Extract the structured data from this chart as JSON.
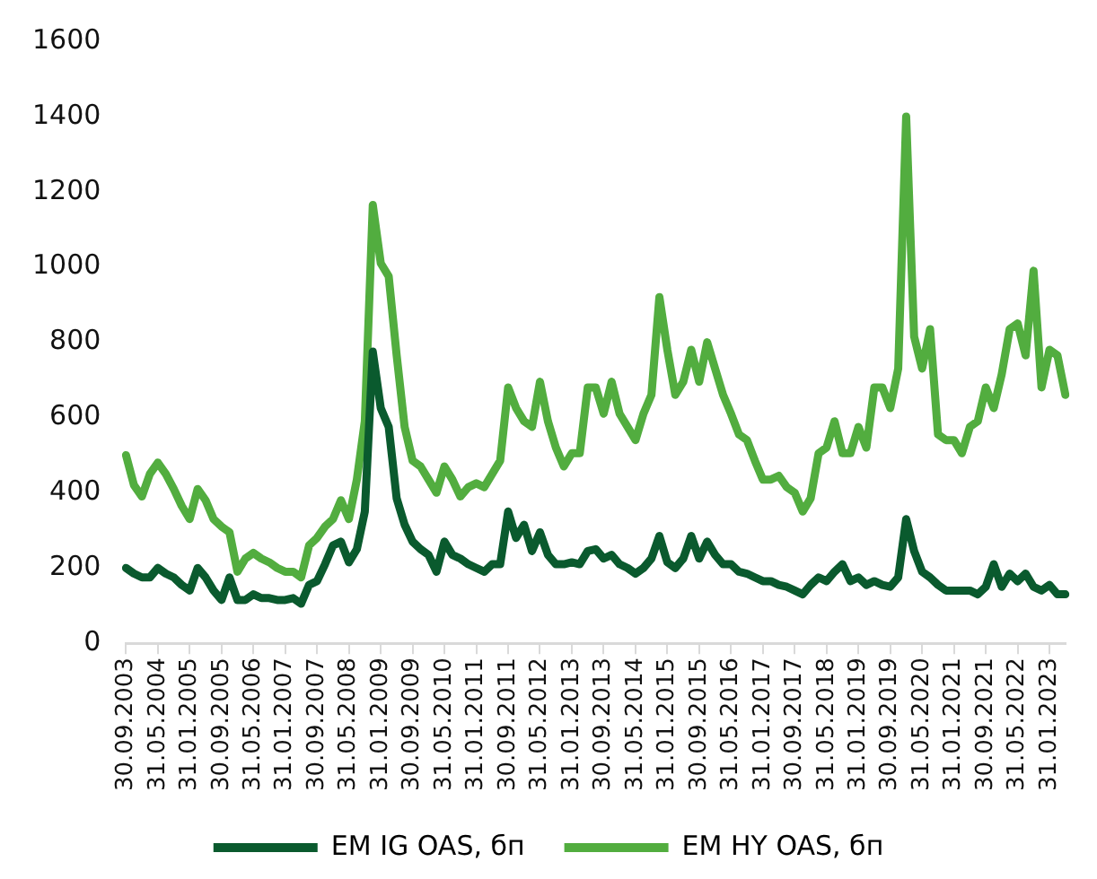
{
  "chart_data": {
    "type": "line",
    "categories": [
      "30.09.2003",
      null,
      null,
      null,
      "31.05.2004",
      null,
      null,
      null,
      "31.01.2005",
      null,
      null,
      null,
      "30.09.2005",
      null,
      null,
      null,
      "31.05.2006",
      null,
      null,
      null,
      "31.01.2007",
      null,
      null,
      null,
      "30.09.2007",
      null,
      null,
      null,
      "31.05.2008",
      null,
      null,
      null,
      "31.01.2009",
      null,
      null,
      null,
      "30.09.2009",
      null,
      null,
      null,
      "31.05.2010",
      null,
      null,
      null,
      "31.01.2011",
      null,
      null,
      null,
      "30.09.2011",
      null,
      null,
      null,
      "31.05.2012",
      null,
      null,
      null,
      "31.01.2013",
      null,
      null,
      null,
      "30.09.2013",
      null,
      null,
      null,
      "31.05.2014",
      null,
      null,
      null,
      "31.01.2015",
      null,
      null,
      null,
      "30.09.2015",
      null,
      null,
      null,
      "31.05.2016",
      null,
      null,
      null,
      "31.01.2017",
      null,
      null,
      null,
      "30.09.2017",
      null,
      null,
      null,
      "31.05.2018",
      null,
      null,
      null,
      "31.01.2019",
      null,
      null,
      null,
      "30.09.2019",
      null,
      null,
      null,
      "31.05.2020",
      null,
      null,
      null,
      "31.01.2021",
      null,
      null,
      null,
      "30.09.2021",
      null,
      null,
      null,
      "31.05.2022",
      null,
      null,
      null,
      "31.01.2023",
      null,
      null
    ],
    "series": [
      {
        "name": "EM IG OAS, бп",
        "color": "#0a5a2e",
        "values": [
          200,
          185,
          175,
          175,
          200,
          185,
          175,
          155,
          140,
          200,
          175,
          140,
          115,
          175,
          115,
          115,
          130,
          120,
          120,
          115,
          115,
          120,
          105,
          155,
          165,
          210,
          260,
          270,
          215,
          250,
          350,
          775,
          625,
          575,
          385,
          315,
          270,
          250,
          235,
          190,
          270,
          235,
          225,
          210,
          200,
          190,
          210,
          210,
          350,
          280,
          315,
          245,
          295,
          235,
          210,
          210,
          215,
          210,
          245,
          250,
          225,
          235,
          210,
          200,
          185,
          200,
          225,
          285,
          215,
          200,
          225,
          285,
          225,
          270,
          235,
          210,
          210,
          190,
          185,
          175,
          165,
          165,
          155,
          150,
          140,
          130,
          155,
          175,
          165,
          190,
          210,
          165,
          175,
          155,
          165,
          155,
          150,
          175,
          330,
          245,
          190,
          175,
          155,
          140,
          140,
          140,
          140,
          130,
          150,
          210,
          150,
          185,
          165,
          185,
          150,
          140,
          155,
          130,
          130
        ]
      },
      {
        "name": "EM HY OAS, бп",
        "color": "#52ad3f",
        "values": [
          500,
          420,
          390,
          450,
          480,
          450,
          410,
          365,
          330,
          410,
          380,
          330,
          310,
          295,
          190,
          225,
          240,
          225,
          215,
          200,
          190,
          190,
          175,
          260,
          280,
          310,
          330,
          380,
          330,
          435,
          590,
          1165,
          1010,
          975,
          765,
          575,
          485,
          470,
          435,
          400,
          470,
          435,
          390,
          415,
          425,
          415,
          450,
          485,
          680,
          625,
          590,
          575,
          695,
          590,
          520,
          470,
          505,
          505,
          680,
          680,
          610,
          695,
          610,
          575,
          540,
          610,
          660,
          920,
          780,
          660,
          695,
          780,
          695,
          800,
          730,
          660,
          610,
          555,
          540,
          485,
          435,
          435,
          445,
          415,
          400,
          350,
          385,
          505,
          520,
          590,
          505,
          505,
          575,
          520,
          680,
          680,
          625,
          730,
          1400,
          815,
          730,
          835,
          555,
          540,
          540,
          505,
          575,
          590,
          680,
          625,
          715,
          835,
          850,
          765,
          990,
          680,
          780,
          765,
          660
        ]
      }
    ],
    "ylim": [
      0,
      1600
    ],
    "yticks": [
      0,
      200,
      400,
      600,
      800,
      1000,
      1200,
      1400,
      1600
    ],
    "grid": false,
    "legend": "bottom",
    "marker": "none",
    "line_style": "solid"
  }
}
